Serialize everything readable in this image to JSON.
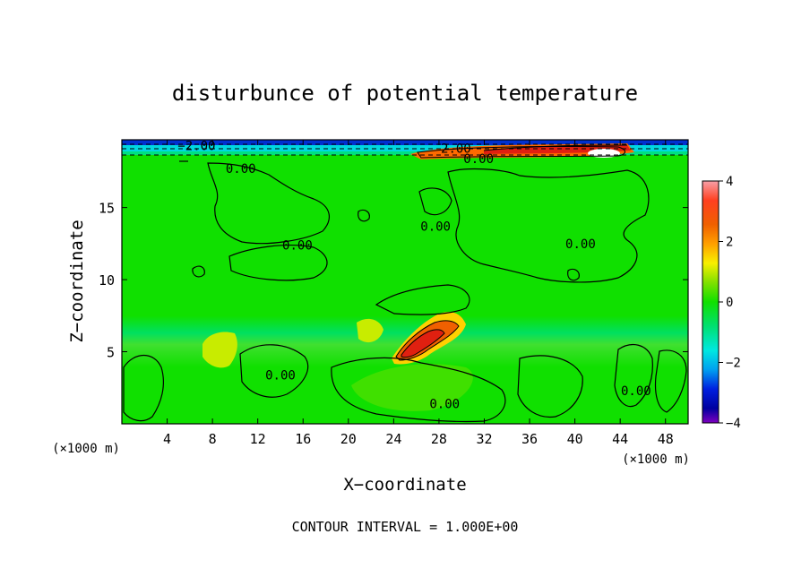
{
  "chart_data": {
    "type": "heatmap",
    "title": "disturbunce of potential temperature",
    "xlabel": "X−coordinate",
    "ylabel": "Z−coordinate",
    "x_unit": "(×1000 m)",
    "y_unit": "(×1000 m)",
    "xlim": [
      0,
      50
    ],
    "ylim": [
      0,
      19.7
    ],
    "x_ticks": [
      4,
      8,
      12,
      16,
      20,
      24,
      28,
      32,
      36,
      40,
      44,
      48
    ],
    "y_ticks": [
      5,
      10,
      15
    ],
    "colorbar": {
      "range": [
        -4,
        4
      ],
      "ticks": [
        "4",
        "2",
        "0",
        "−2",
        "−4"
      ],
      "tick_values": [
        4,
        2,
        0,
        -2,
        -4
      ]
    },
    "contour_labels": [
      {
        "text": "−2.00",
        "x": 6.6,
        "z": 19.3
      },
      {
        "text": "2.00",
        "x": 29.5,
        "z": 19.1
      },
      {
        "text": "0.00",
        "x": 31.5,
        "z": 18.4
      },
      {
        "text": "0.00",
        "x": 10.5,
        "z": 17.7
      },
      {
        "text": "0.00",
        "x": 15.5,
        "z": 12.4
      },
      {
        "text": "0.00",
        "x": 40.5,
        "z": 12.5
      },
      {
        "text": "0.00",
        "x": 27.7,
        "z": 13.7
      },
      {
        "text": "0.00",
        "x": 14.0,
        "z": 3.4
      },
      {
        "text": "0.00",
        "x": 28.5,
        "z": 1.4
      },
      {
        "text": "0.00",
        "x": 45.4,
        "z": 2.3
      }
    ],
    "footer": "CONTOUR INTERVAL = 1.000E+00"
  }
}
